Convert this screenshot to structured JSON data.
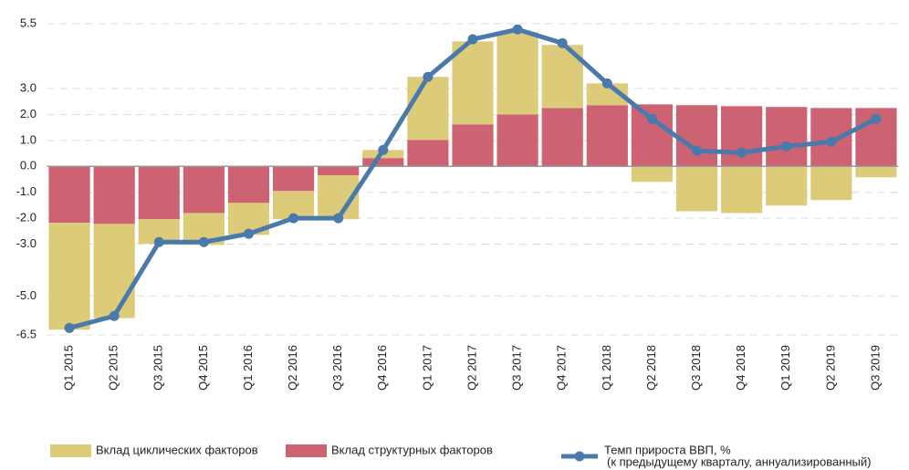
{
  "chart_data": {
    "type": "bar",
    "stacked": true,
    "categories": [
      "Q1 2015",
      "Q2 2015",
      "Q3 2015",
      "Q4 2015",
      "Q1 2016",
      "Q2 2016",
      "Q3 2016",
      "Q4 2016",
      "Q1 2017",
      "Q2 2017",
      "Q3 2017",
      "Q4 2017",
      "Q1 2018",
      "Q2 2018",
      "Q3 2018",
      "Q4 2018",
      "Q1 2019",
      "Q2 2019",
      "Q3 2019"
    ],
    "series": [
      {
        "name": "Вклад структурных факторов",
        "color": "#cc6272",
        "type": "bar",
        "values": [
          -2.18,
          -2.22,
          -2.04,
          -1.8,
          -1.41,
          -0.95,
          -0.35,
          0.32,
          1.02,
          1.62,
          2.0,
          2.25,
          2.36,
          2.39,
          2.36,
          2.32,
          2.29,
          2.25,
          2.25
        ]
      },
      {
        "name": "Вклад циклических факторов",
        "color": "#dccb78",
        "type": "bar",
        "values": [
          -4.12,
          -3.63,
          -0.95,
          -1.23,
          -1.23,
          -1.09,
          -1.69,
          0.31,
          2.43,
          3.2,
          3.18,
          2.43,
          0.84,
          -0.6,
          -1.73,
          -1.8,
          -1.51,
          -1.3,
          -0.42
        ]
      },
      {
        "name": "Темп прироста ВВП, %",
        "color": "#4a7aab",
        "type": "line",
        "values": [
          -6.23,
          -5.77,
          -2.92,
          -2.92,
          -2.6,
          -2.0,
          -2.0,
          0.63,
          3.45,
          4.9,
          5.28,
          4.75,
          3.2,
          1.83,
          0.6,
          0.53,
          0.77,
          0.95,
          1.83
        ]
      }
    ],
    "legend_note": "(к предыдущему кварталу, аннуализированный)",
    "ylim": [
      -6.5,
      5.5
    ],
    "yticks": [
      {
        "value": 5.5,
        "label": "5.5"
      },
      {
        "value": 3,
        "label": "3.0"
      },
      {
        "value": 2,
        "label": "2.0"
      },
      {
        "value": 1,
        "label": "1.0"
      },
      {
        "value": 0,
        "label": "0.0"
      },
      {
        "value": -1,
        "label": "-1.0"
      },
      {
        "value": -2,
        "label": "-2.0"
      },
      {
        "value": -3,
        "label": "-3.0"
      },
      {
        "value": -5,
        "label": "-5.0"
      },
      {
        "value": -6.5,
        "label": "-6.5"
      }
    ],
    "grid": true,
    "legend": "bottom"
  }
}
